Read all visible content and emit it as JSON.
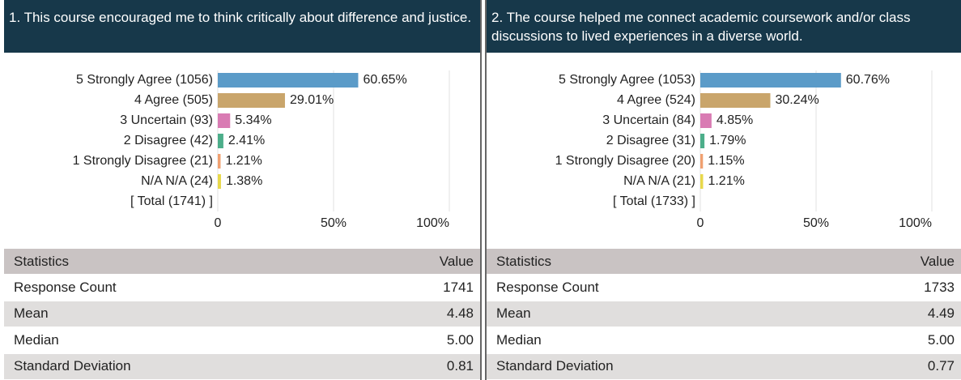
{
  "chart_data": [
    {
      "type": "bar",
      "orientation": "horizontal",
      "title": "1. This course encouraged me to think critically about difference and justice.",
      "categories": [
        "5 Strongly Agree (1056)",
        "4 Agree (505)",
        "3 Uncertain (93)",
        "2 Disagree (42)",
        "1 Strongly Disagree (21)",
        "N/A N/A (24)"
      ],
      "values": [
        60.65,
        29.01,
        5.34,
        2.41,
        1.21,
        1.38
      ],
      "value_labels": [
        "60.65%",
        "29.01%",
        "5.34%",
        "2.41%",
        "1.21%",
        "1.38%"
      ],
      "colors": [
        "#5b9bc8",
        "#c9a56b",
        "#d97bb3",
        "#4cae8a",
        "#f0a070",
        "#e8d84a"
      ],
      "total": "[ Total (1741) ]",
      "xlim": [
        0,
        100
      ],
      "xticks": [
        0,
        {
          "value": 50,
          "label": "50%"
        },
        {
          "value": 100,
          "label": "100%"
        }
      ],
      "grid": true
    },
    {
      "type": "bar",
      "orientation": "horizontal",
      "title": "2. The course helped me connect academic coursework and/or class discussions to lived experiences in a diverse world.",
      "categories": [
        "5 Strongly Agree (1053)",
        "4 Agree (524)",
        "3 Uncertain (84)",
        "2 Disagree (31)",
        "1 Strongly Disagree (20)",
        "N/A N/A (21)"
      ],
      "values": [
        60.76,
        30.24,
        4.85,
        1.79,
        1.15,
        1.21
      ],
      "value_labels": [
        "60.76%",
        "30.24%",
        "4.85%",
        "1.79%",
        "1.15%",
        "1.21%"
      ],
      "colors": [
        "#5b9bc8",
        "#c9a56b",
        "#d97bb3",
        "#4cae8a",
        "#f0a070",
        "#e8d84a"
      ],
      "total": "[ Total (1733) ]",
      "xlim": [
        0,
        100
      ],
      "xticks": [
        0,
        {
          "value": 50,
          "label": "50%"
        },
        {
          "value": 100,
          "label": "100%"
        }
      ],
      "grid": true
    }
  ],
  "tables": [
    {
      "header": [
        "Statistics",
        "Value"
      ],
      "rows": [
        [
          "Response Count",
          "1741"
        ],
        [
          "Mean",
          "4.48"
        ],
        [
          "Median",
          "5.00"
        ],
        [
          "Standard Deviation",
          "0.81"
        ]
      ]
    },
    {
      "header": [
        "Statistics",
        "Value"
      ],
      "rows": [
        [
          "Response Count",
          "1733"
        ],
        [
          "Mean",
          "4.49"
        ],
        [
          "Median",
          "5.00"
        ],
        [
          "Standard Deviation",
          "0.77"
        ]
      ]
    }
  ]
}
